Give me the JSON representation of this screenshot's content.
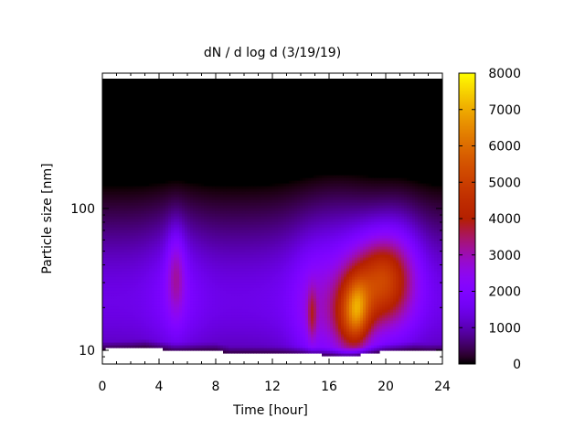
{
  "chart_data": {
    "type": "heatmap",
    "title": "dN / d log d (3/19/19)",
    "xlabel": "Time [hour]",
    "ylabel": "Particle size [nm]",
    "x_range": [
      0,
      24
    ],
    "y_range": [
      8,
      900
    ],
    "y_scale": "log",
    "x_ticks": [
      0,
      4,
      8,
      12,
      16,
      20,
      24
    ],
    "x_tick_labels": [
      "0",
      "4",
      "8",
      "12",
      "16",
      "20",
      "24"
    ],
    "y_ticks": [
      10,
      100
    ],
    "y_tick_labels": [
      "10",
      "100"
    ],
    "colorbar": {
      "min": 0,
      "max": 8000,
      "ticks": [
        0,
        1000,
        2000,
        3000,
        4000,
        5000,
        6000,
        7000,
        8000
      ],
      "tick_labels": [
        "0",
        "1000",
        "2000",
        "3000",
        "4000",
        "5000",
        "6000",
        "7000",
        "8000"
      ],
      "colormap": "gnuplot"
    },
    "lower_size_bound_nm": {
      "hours": [
        0,
        1,
        2,
        3,
        4,
        5,
        6,
        8,
        9,
        10,
        12,
        14,
        15,
        16,
        17,
        18,
        19,
        20,
        21,
        22,
        23,
        24
      ],
      "sizes": [
        10.2,
        10.3,
        10.4,
        10.6,
        10.3,
        10.0,
        10.0,
        10.0,
        9.5,
        9.5,
        9.5,
        9.5,
        9.4,
        9.3,
        9.2,
        9.3,
        9.6,
        9.9,
        10.0,
        10.1,
        9.9,
        9.9
      ]
    },
    "features": [
      {
        "hour": 5.2,
        "size_nm": 35,
        "peak": 2900
      },
      {
        "hour": 14.8,
        "size_nm": 18,
        "peak": 2600
      },
      {
        "hour": 17.7,
        "size_nm": 18,
        "peak": 7200
      },
      {
        "hour": 20.0,
        "size_nm": 30,
        "peak": 5300
      }
    ]
  }
}
